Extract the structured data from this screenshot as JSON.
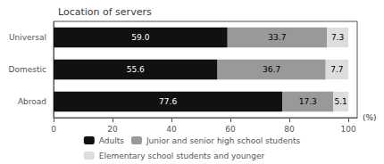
{
  "chart_data": {
    "type": "bar",
    "orientation": "horizontal",
    "stacked": true,
    "title": "Location of servers",
    "xlabel": "(%)",
    "categories": [
      "Universal",
      "Domestic",
      "Abroad"
    ],
    "series": [
      {
        "name": "Adults",
        "color": "#111111",
        "values": [
          59.0,
          55.6,
          77.6
        ],
        "value_labels": [
          "59.0",
          "55.6",
          "77.6"
        ]
      },
      {
        "name": "Junior and senior high school students",
        "color": "#999999",
        "values": [
          33.7,
          36.7,
          17.3
        ],
        "value_labels": [
          "33.7",
          "36.7",
          "17.3"
        ]
      },
      {
        "name": "Elementary school students and younger",
        "color": "#dddddd",
        "values": [
          7.3,
          7.7,
          5.1
        ],
        "value_labels": [
          "7.3",
          "7.7",
          "5.1"
        ]
      }
    ],
    "xlim": [
      0,
      103
    ],
    "xticks": [
      0,
      20,
      40,
      60,
      80,
      100
    ],
    "data_labels": true,
    "grid": false,
    "legend": "bottom"
  }
}
